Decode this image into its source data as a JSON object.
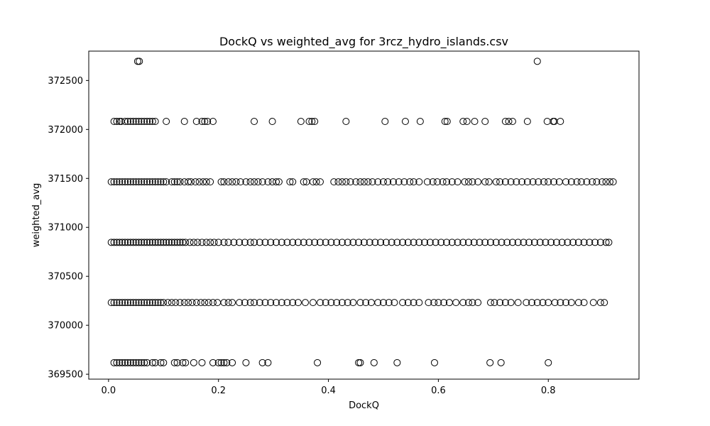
{
  "chart_data": {
    "type": "scatter",
    "title": "DockQ vs weighted_avg for 3rcz_hydro_islands.csv",
    "xlabel": "DockQ",
    "ylabel": "weighted_avg",
    "xlim": [
      -0.036,
      0.965
    ],
    "ylim": [
      369450,
      372800
    ],
    "xticks": [
      {
        "value": 0.0,
        "label": "0.0"
      },
      {
        "value": 0.2,
        "label": "0.2"
      },
      {
        "value": 0.4,
        "label": "0.4"
      },
      {
        "value": 0.6,
        "label": "0.6"
      },
      {
        "value": 0.8,
        "label": "0.8"
      }
    ],
    "yticks": [
      {
        "value": 369500,
        "label": "369500"
      },
      {
        "value": 370000,
        "label": "370000"
      },
      {
        "value": 370500,
        "label": "370500"
      },
      {
        "value": 371000,
        "label": "371000"
      },
      {
        "value": 371500,
        "label": "371500"
      },
      {
        "value": 372000,
        "label": "372000"
      },
      {
        "value": 372500,
        "label": "372500"
      }
    ],
    "grid": false,
    "legend": "none",
    "marker": {
      "shape": "open-circle",
      "color": "#000000"
    },
    "series": [
      {
        "y": 372696,
        "x": [
          0.053,
          0.056,
          0.78
        ]
      },
      {
        "y": 372082,
        "x": [
          0.01,
          0.015,
          0.02,
          0.023,
          0.03,
          0.035,
          0.04,
          0.045,
          0.05,
          0.055,
          0.06,
          0.065,
          0.07,
          0.075,
          0.08,
          0.085,
          0.105,
          0.138,
          0.16,
          0.17,
          0.175,
          0.18,
          0.19,
          0.265,
          0.298,
          0.35,
          0.365,
          0.37,
          0.375,
          0.432,
          0.503,
          0.54,
          0.567,
          0.612,
          0.616,
          0.645,
          0.652,
          0.666,
          0.685,
          0.722,
          0.728,
          0.735,
          0.762,
          0.798,
          0.809,
          0.811,
          0.822
        ]
      },
      {
        "y": 371465,
        "x": [
          0.005,
          0.01,
          0.015,
          0.02,
          0.025,
          0.03,
          0.035,
          0.04,
          0.045,
          0.05,
          0.055,
          0.06,
          0.065,
          0.07,
          0.075,
          0.08,
          0.085,
          0.09,
          0.095,
          0.1,
          0.105,
          0.115,
          0.12,
          0.125,
          0.13,
          0.138,
          0.145,
          0.15,
          0.158,
          0.165,
          0.172,
          0.178,
          0.185,
          0.205,
          0.21,
          0.218,
          0.225,
          0.232,
          0.24,
          0.25,
          0.258,
          0.265,
          0.272,
          0.28,
          0.29,
          0.298,
          0.305,
          0.31,
          0.33,
          0.335,
          0.355,
          0.36,
          0.372,
          0.378,
          0.385,
          0.41,
          0.418,
          0.425,
          0.432,
          0.44,
          0.45,
          0.458,
          0.465,
          0.472,
          0.48,
          0.49,
          0.5,
          0.508,
          0.518,
          0.528,
          0.538,
          0.548,
          0.555,
          0.565,
          0.58,
          0.59,
          0.598,
          0.608,
          0.615,
          0.625,
          0.635,
          0.648,
          0.655,
          0.662,
          0.672,
          0.685,
          0.692,
          0.705,
          0.712,
          0.722,
          0.732,
          0.742,
          0.752,
          0.762,
          0.772,
          0.782,
          0.792,
          0.8,
          0.81,
          0.82,
          0.832,
          0.842,
          0.852,
          0.86,
          0.87,
          0.88,
          0.888,
          0.898,
          0.905,
          0.912,
          0.918
        ]
      },
      {
        "y": 370847,
        "x": [
          0.005,
          0.01,
          0.015,
          0.02,
          0.025,
          0.03,
          0.035,
          0.04,
          0.045,
          0.05,
          0.055,
          0.06,
          0.065,
          0.07,
          0.075,
          0.08,
          0.085,
          0.09,
          0.095,
          0.1,
          0.105,
          0.11,
          0.115,
          0.12,
          0.125,
          0.13,
          0.135,
          0.14,
          0.148,
          0.155,
          0.162,
          0.17,
          0.178,
          0.185,
          0.192,
          0.2,
          0.21,
          0.218,
          0.228,
          0.238,
          0.248,
          0.258,
          0.265,
          0.275,
          0.285,
          0.295,
          0.305,
          0.315,
          0.325,
          0.335,
          0.345,
          0.355,
          0.365,
          0.375,
          0.385,
          0.395,
          0.405,
          0.415,
          0.425,
          0.435,
          0.445,
          0.455,
          0.465,
          0.475,
          0.485,
          0.495,
          0.505,
          0.515,
          0.525,
          0.535,
          0.545,
          0.555,
          0.565,
          0.575,
          0.585,
          0.595,
          0.605,
          0.615,
          0.625,
          0.635,
          0.645,
          0.655,
          0.665,
          0.675,
          0.685,
          0.695,
          0.705,
          0.715,
          0.725,
          0.735,
          0.745,
          0.755,
          0.765,
          0.775,
          0.785,
          0.795,
          0.805,
          0.815,
          0.825,
          0.835,
          0.845,
          0.855,
          0.865,
          0.875,
          0.885,
          0.895,
          0.905,
          0.91
        ]
      },
      {
        "y": 370232,
        "x": [
          0.005,
          0.01,
          0.015,
          0.02,
          0.025,
          0.03,
          0.035,
          0.04,
          0.045,
          0.05,
          0.055,
          0.06,
          0.065,
          0.07,
          0.075,
          0.08,
          0.085,
          0.09,
          0.095,
          0.1,
          0.108,
          0.115,
          0.122,
          0.13,
          0.138,
          0.145,
          0.152,
          0.16,
          0.168,
          0.175,
          0.182,
          0.19,
          0.198,
          0.21,
          0.218,
          0.225,
          0.238,
          0.248,
          0.258,
          0.265,
          0.275,
          0.285,
          0.295,
          0.305,
          0.315,
          0.325,
          0.335,
          0.345,
          0.358,
          0.372,
          0.385,
          0.395,
          0.405,
          0.415,
          0.425,
          0.435,
          0.445,
          0.458,
          0.468,
          0.478,
          0.49,
          0.5,
          0.51,
          0.52,
          0.535,
          0.545,
          0.555,
          0.565,
          0.582,
          0.592,
          0.6,
          0.61,
          0.62,
          0.632,
          0.645,
          0.655,
          0.662,
          0.672,
          0.695,
          0.702,
          0.712,
          0.722,
          0.732,
          0.745,
          0.76,
          0.77,
          0.78,
          0.79,
          0.8,
          0.812,
          0.822,
          0.832,
          0.842,
          0.855,
          0.865,
          0.882,
          0.895,
          0.902
        ]
      },
      {
        "y": 369618,
        "x": [
          0.01,
          0.015,
          0.02,
          0.025,
          0.03,
          0.035,
          0.04,
          0.045,
          0.05,
          0.055,
          0.06,
          0.065,
          0.07,
          0.08,
          0.085,
          0.095,
          0.1,
          0.12,
          0.125,
          0.135,
          0.14,
          0.155,
          0.17,
          0.19,
          0.2,
          0.205,
          0.21,
          0.215,
          0.225,
          0.25,
          0.28,
          0.29,
          0.38,
          0.455,
          0.458,
          0.483,
          0.525,
          0.593,
          0.694,
          0.714,
          0.8
        ]
      }
    ]
  }
}
